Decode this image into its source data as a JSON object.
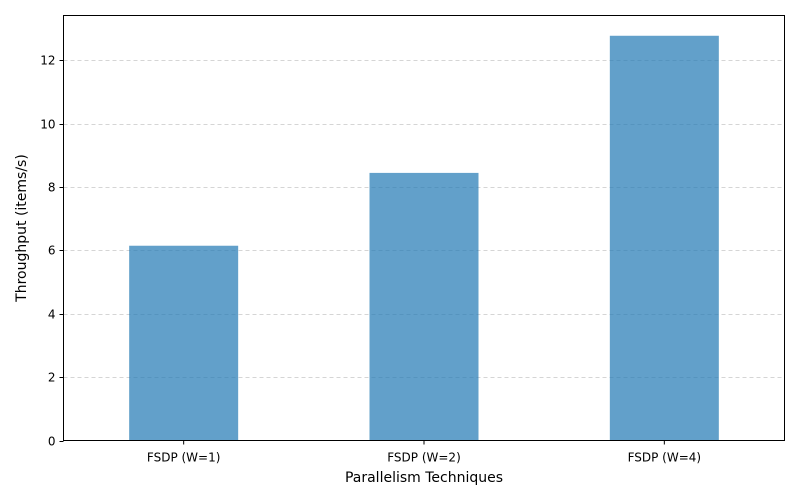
{
  "chart_data": {
    "type": "bar",
    "title": "",
    "xlabel": "Parallelism Techniques",
    "ylabel": "Throughput (items/s)",
    "categories": [
      "FSDP (W=1)",
      "FSDP (W=2)",
      "FSDP (W=4)"
    ],
    "values": [
      6.15,
      8.45,
      12.78
    ],
    "ylim": [
      0,
      13.42
    ],
    "yticks": [
      0,
      2,
      4,
      6,
      8,
      10,
      12
    ],
    "grid": {
      "axis": "y",
      "style": "dashed"
    },
    "legend": "none",
    "colors": {
      "bar": "#1f77b4",
      "grid": "#c8c8c8",
      "axis": "#000000"
    }
  }
}
